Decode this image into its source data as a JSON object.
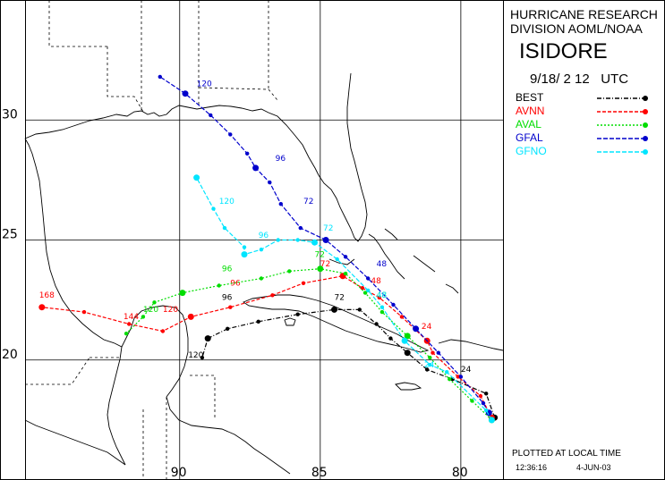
{
  "title_lines": [
    "HURRICANE RESEARCH",
    "DIVISION AOML/NOAA"
  ],
  "storm_name": "ISIDORE",
  "init_time": "9/18/ 2 12   UTC",
  "legend": [
    {
      "name": "BEST",
      "color": "#000000",
      "style": "dash-dot"
    },
    {
      "name": "AVNN",
      "color": "#ff0000",
      "style": "dash"
    },
    {
      "name": "AVAL",
      "color": "#00dd00",
      "style": "dot"
    },
    {
      "name": "GFAL",
      "color": "#0000cc",
      "style": "dash"
    },
    {
      "name": "GFNO",
      "color": "#00e5ff",
      "style": "dash"
    }
  ],
  "footer": {
    "plotted": "PLOTTED AT LOCAL TIME",
    "time": "12:36:16",
    "date": "4-JUN-03"
  },
  "axis": {
    "lat_labels": [
      "30",
      "25",
      "20"
    ],
    "lon_labels": [
      "90",
      "85",
      "80"
    ]
  },
  "chart_data": {
    "type": "line",
    "x_label": "",
    "y_label": "",
    "xlim": [
      -95.5,
      -78.5
    ],
    "ylim": [
      15.0,
      35.0
    ],
    "grid": true,
    "series": [
      {
        "name": "BEST",
        "color": "#000000",
        "points": [
          [
            -78.8,
            17.6
          ],
          [
            -79.1,
            18.6
          ],
          [
            -80.3,
            19.2
          ],
          [
            -81.2,
            19.6
          ],
          [
            -81.9,
            20.3
          ],
          [
            -82.5,
            20.9
          ],
          [
            -83.0,
            21.5
          ],
          [
            -83.6,
            22.1
          ],
          [
            -84.5,
            22.1
          ],
          [
            -85.8,
            21.9
          ],
          [
            -87.2,
            21.6
          ],
          [
            -88.3,
            21.3
          ],
          [
            -89.0,
            20.9
          ],
          [
            -89.2,
            20.1
          ]
        ],
        "labels": [
          {
            "t": "24",
            "x": -80.0,
            "y": 19.5
          },
          {
            "t": "72",
            "x": -84.5,
            "y": 22.5
          },
          {
            "t": "96",
            "x": -88.5,
            "y": 22.5
          },
          {
            "t": "120",
            "x": -89.7,
            "y": 20.1
          }
        ]
      },
      {
        "name": "AVNN",
        "color": "#ff0000",
        "points": [
          [
            -78.9,
            17.6
          ],
          [
            -79.3,
            18.5
          ],
          [
            -80.1,
            19.3
          ],
          [
            -81.0,
            20.3
          ],
          [
            -81.2,
            20.8
          ],
          [
            -82.1,
            21.8
          ],
          [
            -82.9,
            22.6
          ],
          [
            -83.5,
            23.0
          ],
          [
            -84.2,
            23.5
          ],
          [
            -85.6,
            23.2
          ],
          [
            -86.7,
            22.7
          ],
          [
            -88.2,
            22.2
          ],
          [
            -89.6,
            21.8
          ],
          [
            -90.6,
            21.2
          ],
          [
            -91.8,
            21.5
          ],
          [
            -93.4,
            22.0
          ],
          [
            -94.9,
            22.2
          ]
        ],
        "labels": [
          {
            "t": "24",
            "x": -81.4,
            "y": 21.3
          },
          {
            "t": "48",
            "x": -83.2,
            "y": 23.2
          },
          {
            "t": "72",
            "x": -85.0,
            "y": 23.9
          },
          {
            "t": "96",
            "x": -88.2,
            "y": 23.1
          },
          {
            "t": "120",
            "x": -90.6,
            "y": 22.0
          },
          {
            "t": "144",
            "x": -92.0,
            "y": 21.7
          },
          {
            "t": "168",
            "x": -95.0,
            "y": 22.6
          }
        ]
      },
      {
        "name": "AVAL",
        "color": "#00dd00",
        "points": [
          [
            -78.9,
            17.5
          ],
          [
            -79.6,
            18.3
          ],
          [
            -80.4,
            19.2
          ],
          [
            -81.1,
            20.1
          ],
          [
            -81.9,
            21.0
          ],
          [
            -82.8,
            22.0
          ],
          [
            -83.4,
            22.8
          ],
          [
            -84.1,
            23.6
          ],
          [
            -85.0,
            23.8
          ],
          [
            -86.1,
            23.7
          ],
          [
            -87.1,
            23.4
          ],
          [
            -88.6,
            23.1
          ],
          [
            -89.9,
            22.8
          ],
          [
            -90.9,
            22.4
          ],
          [
            -91.3,
            21.8
          ],
          [
            -91.9,
            21.1
          ]
        ],
        "labels": [
          {
            "t": "48",
            "x": -83.0,
            "y": 22.6
          },
          {
            "t": "72",
            "x": -85.2,
            "y": 24.3
          },
          {
            "t": "96",
            "x": -88.5,
            "y": 23.7
          },
          {
            "t": "120",
            "x": -91.3,
            "y": 22.0
          }
        ]
      },
      {
        "name": "GFAL",
        "color": "#0000cc",
        "points": [
          [
            -79.0,
            17.8
          ],
          [
            -79.2,
            18.2
          ],
          [
            -80.0,
            19.3
          ],
          [
            -80.8,
            20.3
          ],
          [
            -81.6,
            21.3
          ],
          [
            -82.4,
            22.3
          ],
          [
            -83.3,
            23.4
          ],
          [
            -84.1,
            24.3
          ],
          [
            -84.8,
            25.0
          ],
          [
            -85.7,
            25.5
          ],
          [
            -86.4,
            26.5
          ],
          [
            -86.8,
            27.4
          ],
          [
            -87.3,
            28.0
          ],
          [
            -87.6,
            28.6
          ],
          [
            -88.2,
            29.4
          ],
          [
            -88.9,
            30.2
          ],
          [
            -89.8,
            31.1
          ],
          [
            -90.7,
            31.8
          ]
        ],
        "labels": [
          {
            "t": "48",
            "x": -83.0,
            "y": 23.9
          },
          {
            "t": "72",
            "x": -85.6,
            "y": 26.5
          },
          {
            "t": "96",
            "x": -86.6,
            "y": 28.3
          },
          {
            "t": "120",
            "x": -89.4,
            "y": 31.4
          }
        ]
      },
      {
        "name": "GFNO",
        "color": "#00e5ff",
        "points": [
          [
            -78.9,
            17.5
          ],
          [
            -79.1,
            17.9
          ],
          [
            -80.5,
            19.5
          ],
          [
            -81.1,
            19.8
          ],
          [
            -82.0,
            20.8
          ],
          [
            -82.8,
            22.2
          ],
          [
            -83.3,
            22.9
          ],
          [
            -84.4,
            24.2
          ],
          [
            -85.2,
            24.9
          ],
          [
            -85.8,
            25.0
          ],
          [
            -86.5,
            25.0
          ],
          [
            -87.1,
            24.6
          ],
          [
            -87.7,
            24.4
          ],
          [
            -87.7,
            24.7
          ],
          [
            -88.4,
            25.5
          ],
          [
            -88.8,
            26.3
          ],
          [
            -89.4,
            27.6
          ]
        ],
        "labels": [
          {
            "t": "24",
            "x": -81.3,
            "y": 19.7
          },
          {
            "t": "48",
            "x": -83.0,
            "y": 22.6
          },
          {
            "t": "72",
            "x": -84.9,
            "y": 25.4
          },
          {
            "t": "96",
            "x": -87.2,
            "y": 25.1
          },
          {
            "t": "120",
            "x": -88.6,
            "y": 26.5
          }
        ]
      }
    ]
  }
}
